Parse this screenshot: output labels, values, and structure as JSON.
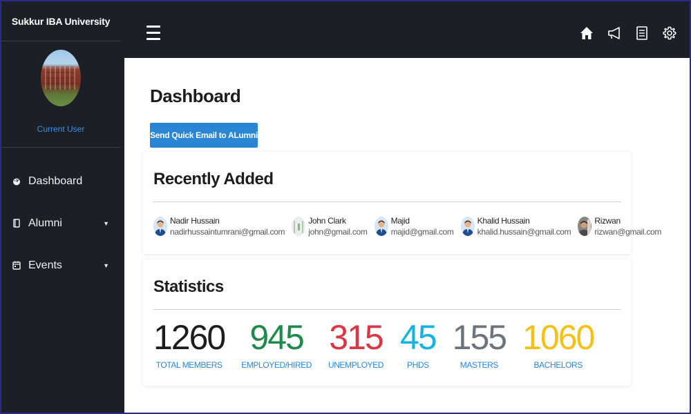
{
  "sidebar": {
    "brand": "Sukkur IBA University",
    "current_user": "Current User",
    "items": [
      {
        "label": "Dashboard",
        "icon": "dashboard-icon",
        "has_caret": false
      },
      {
        "label": "Alumni",
        "icon": "book-icon",
        "has_caret": true
      },
      {
        "label": "Events",
        "icon": "calendar-icon",
        "has_caret": true
      }
    ]
  },
  "topbar": {
    "icons": [
      "home-icon",
      "megaphone-icon",
      "list-document-icon",
      "gear-icon"
    ]
  },
  "main": {
    "title": "Dashboard",
    "email_button": "Send Quick Email to ALumni",
    "recent": {
      "title": "Recently Added",
      "people": [
        {
          "name": "Nadir Hussain",
          "email": "nadirhussaintumrani@gmail.com"
        },
        {
          "name": "John Clark",
          "email": "john@gmail.com"
        },
        {
          "name": "Majid",
          "email": "majid@gmail.com"
        },
        {
          "name": "Khalid Hussain",
          "email": "khalid.hussain@gmail.com"
        },
        {
          "name": "Rizwan",
          "email": "rizwan@gmail.com"
        }
      ]
    },
    "stats": {
      "title": "Statistics",
      "items": [
        {
          "value": "1260",
          "label": "TOTAL MEMBERS",
          "color": "#1d1d1d"
        },
        {
          "value": "945",
          "label": "EMPLOYED/HIRED",
          "color": "#1f8a4c"
        },
        {
          "value": "315",
          "label": "UNEMPLOYED",
          "color": "#dc3545"
        },
        {
          "value": "45",
          "label": "PHDS",
          "color": "#17b3e0"
        },
        {
          "value": "155",
          "label": "MASTERS",
          "color": "#6c757d"
        },
        {
          "value": "1060",
          "label": "BACHELORS",
          "color": "#f5c017"
        }
      ]
    }
  },
  "colors": {
    "sidebar_bg": "#1c1f26",
    "accent": "#2a86d4",
    "current_user": "#3d8fe0"
  }
}
